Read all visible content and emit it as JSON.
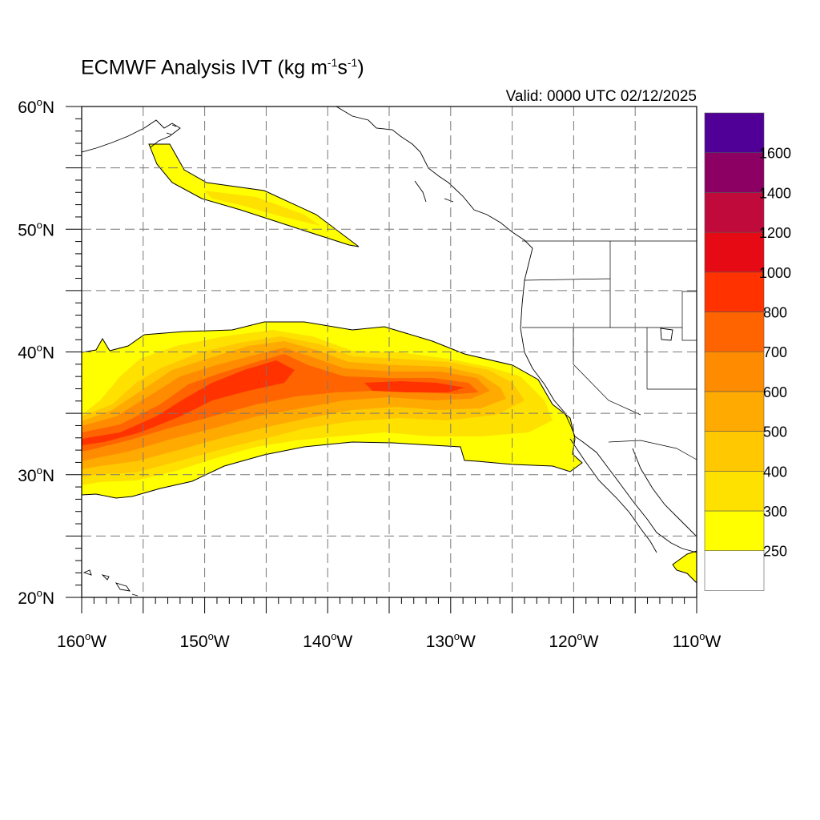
{
  "title": {
    "main": "ECMWF Analysis IVT (kg m",
    "sup1": "-1",
    "mid": "s",
    "sup2": "-1",
    "end": ")"
  },
  "valid": "Valid: 0000 UTC 02/12/2025",
  "map": {
    "projection": "cylindrical-equidistant",
    "lon_range": [
      -160,
      -110
    ],
    "lat_range": [
      20,
      60
    ],
    "lat_labels": [
      {
        "lat": 60,
        "num": "60",
        "sup": "o",
        "hemi": "N"
      },
      {
        "lat": 50,
        "num": "50",
        "sup": "o",
        "hemi": "N"
      },
      {
        "lat": 40,
        "num": "40",
        "sup": "o",
        "hemi": "N"
      },
      {
        "lat": 30,
        "num": "30",
        "sup": "o",
        "hemi": "N"
      },
      {
        "lat": 20,
        "num": "20",
        "sup": "o",
        "hemi": "N"
      }
    ],
    "lon_labels": [
      {
        "lon": -160,
        "num": "160",
        "sup": "o",
        "hemi": "W"
      },
      {
        "lon": -150,
        "num": "150",
        "sup": "o",
        "hemi": "W"
      },
      {
        "lon": -140,
        "num": "140",
        "sup": "o",
        "hemi": "W"
      },
      {
        "lon": -130,
        "num": "130",
        "sup": "o",
        "hemi": "W"
      },
      {
        "lon": -120,
        "num": "120",
        "sup": "o",
        "hemi": "W"
      },
      {
        "lon": -110,
        "num": "110",
        "sup": "o",
        "hemi": "W"
      }
    ],
    "grid_lons": [
      -155,
      -150,
      -145,
      -140,
      -135,
      -130,
      -125,
      -120,
      -115
    ],
    "grid_lats": [
      25,
      30,
      35,
      40,
      45,
      50,
      55
    ]
  },
  "colorbar": {
    "levels": [
      "250",
      "300",
      "400",
      "500",
      "600",
      "700",
      "800",
      "1000",
      "1200",
      "1400",
      "1600"
    ],
    "colors": [
      "#ffffff",
      "#ffff00",
      "#ffe100",
      "#ffc800",
      "#ffaa00",
      "#ff8c00",
      "#ff6400",
      "#ff3200",
      "#e60a14",
      "#c00a3c",
      "#8c0064",
      "#500096"
    ]
  }
}
